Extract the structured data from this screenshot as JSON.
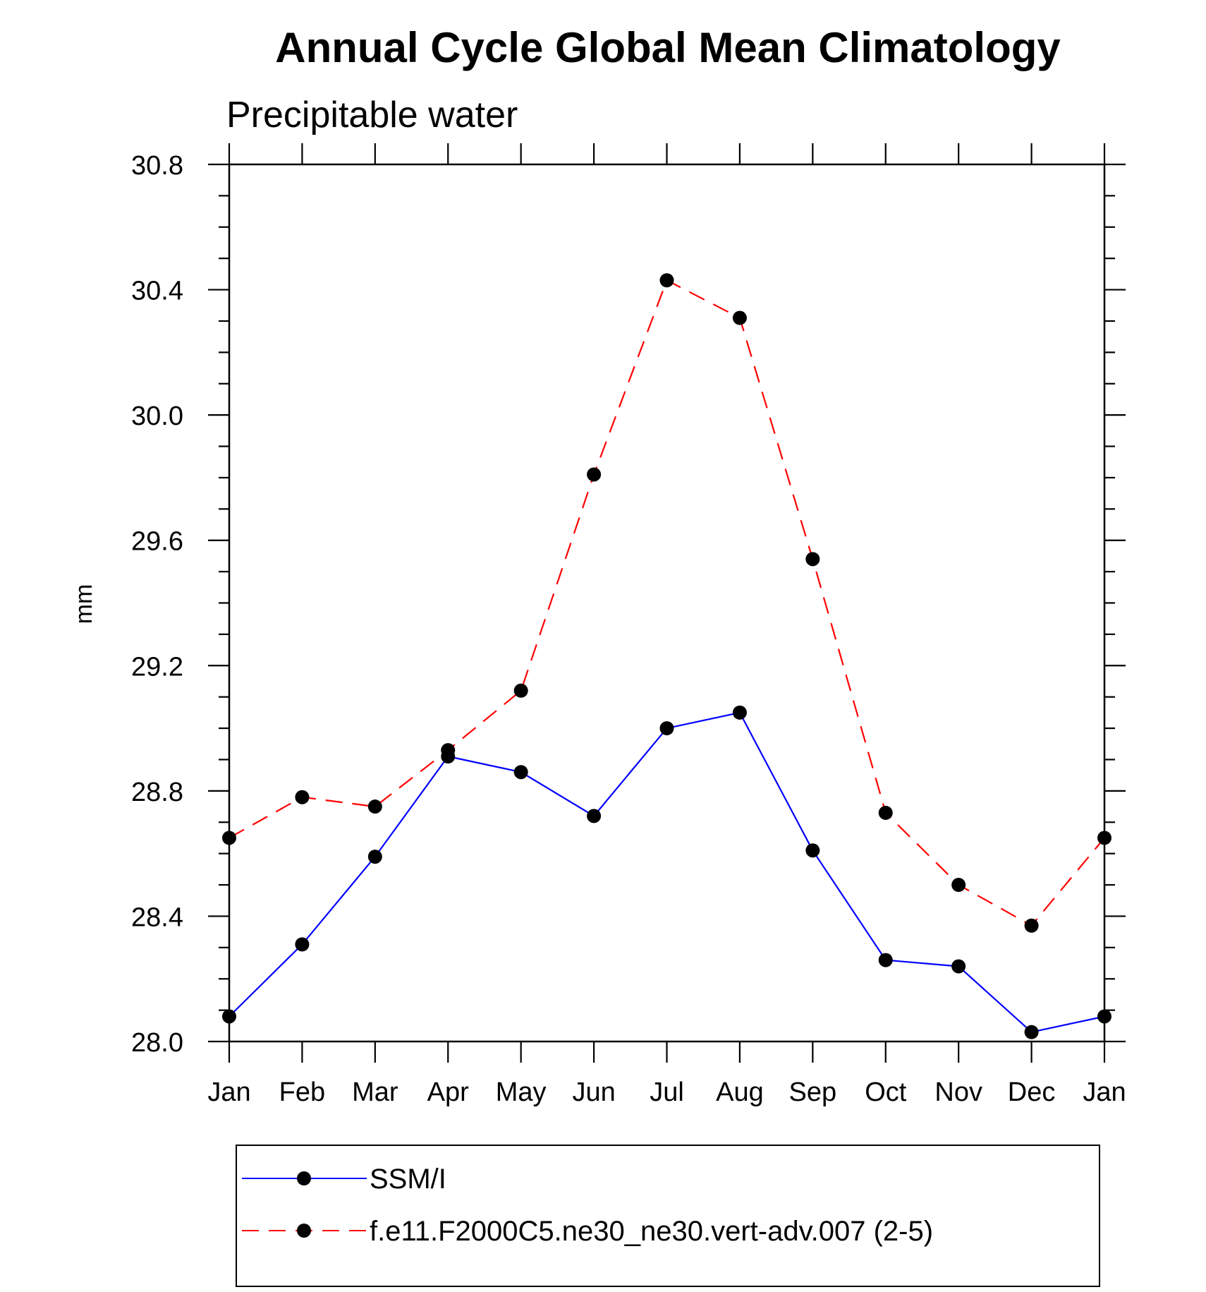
{
  "chart_data": {
    "type": "line",
    "title": "Annual Cycle Global Mean Climatology",
    "subtitle": "Precipitable water",
    "ylabel": "mm",
    "xlabel": "",
    "ylim": [
      28.0,
      30.8
    ],
    "yticks": [
      "28.0",
      "28.4",
      "28.8",
      "29.2",
      "29.6",
      "30.0",
      "30.4",
      "30.8"
    ],
    "categories": [
      "Jan",
      "Feb",
      "Mar",
      "Apr",
      "May",
      "Jun",
      "Jul",
      "Aug",
      "Sep",
      "Oct",
      "Nov",
      "Dec",
      "Jan"
    ],
    "series": [
      {
        "name": "SSM/I",
        "color": "#0000ff",
        "dash": "solid",
        "values": [
          28.08,
          28.31,
          28.59,
          28.91,
          28.86,
          28.72,
          29.0,
          29.05,
          28.61,
          28.26,
          28.24,
          28.03,
          28.08
        ]
      },
      {
        "name": "f.e11.F2000C5.ne30_ne30.vert-adv.007 (2-5)",
        "color": "#ff0000",
        "dash": "dashed",
        "values": [
          28.65,
          28.78,
          28.75,
          28.93,
          29.12,
          29.81,
          30.43,
          30.31,
          29.54,
          28.73,
          28.5,
          28.37,
          28.65
        ]
      }
    ],
    "legend_position": "bottom"
  }
}
